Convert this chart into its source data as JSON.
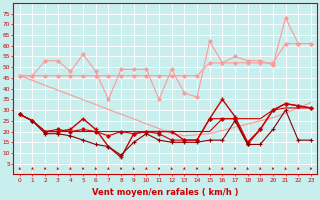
{
  "x": [
    0,
    1,
    2,
    3,
    4,
    5,
    6,
    7,
    8,
    9,
    10,
    11,
    12,
    13,
    14,
    15,
    16,
    17,
    18,
    19,
    20,
    21,
    22,
    23
  ],
  "series": [
    {
      "name": "rafales_top_diamonds",
      "color": "#FF9999",
      "linewidth": 0.8,
      "marker": "D",
      "markersize": 1.8,
      "values": [
        46,
        46,
        53,
        53,
        48,
        56,
        48,
        35,
        49,
        49,
        49,
        35,
        49,
        38,
        36,
        62,
        52,
        55,
        53,
        53,
        51,
        73,
        61,
        61
      ]
    },
    {
      "name": "rafales_flat",
      "color": "#FF9999",
      "linewidth": 0.8,
      "marker": "D",
      "markersize": 1.8,
      "values": [
        46,
        46,
        46,
        46,
        46,
        46,
        46,
        46,
        46,
        46,
        46,
        46,
        46,
        46,
        46,
        52,
        52,
        52,
        52,
        52,
        52,
        61,
        61,
        61
      ]
    },
    {
      "name": "rafales_trend_line",
      "color": "#FF9999",
      "linewidth": 0.8,
      "marker": null,
      "markersize": 0,
      "values": [
        46,
        43.8,
        41.5,
        39.3,
        37.1,
        34.8,
        32.6,
        30.3,
        28.1,
        25.9,
        23.6,
        21.4,
        19.2,
        18,
        18.5,
        19,
        20.5,
        22,
        23.5,
        25,
        26.5,
        28.5,
        31,
        33.5
      ]
    },
    {
      "name": "vent_main_plus",
      "color": "#CC0000",
      "linewidth": 1.0,
      "marker": "+",
      "markersize": 3.5,
      "markeredgewidth": 1.0,
      "values": [
        28,
        25,
        20,
        20,
        21,
        26,
        21,
        13,
        8,
        19,
        20,
        20,
        20,
        16,
        16,
        26,
        35,
        27,
        15,
        21,
        30,
        33,
        32,
        31
      ]
    },
    {
      "name": "vent_diamonds",
      "color": "#CC0000",
      "linewidth": 0.8,
      "marker": "D",
      "markersize": 1.8,
      "markeredgewidth": 0.8,
      "values": [
        28,
        25,
        20,
        21,
        20,
        21,
        20,
        18,
        20,
        19,
        20,
        19,
        16,
        16,
        16,
        26,
        26,
        26,
        14,
        21,
        30,
        33,
        32,
        31
      ]
    },
    {
      "name": "vent_low_plus",
      "color": "#880000",
      "linewidth": 0.8,
      "marker": "+",
      "markersize": 3.0,
      "markeredgewidth": 0.8,
      "values": [
        28,
        25,
        19,
        19,
        18,
        16,
        14,
        13,
        9,
        15,
        19,
        16,
        15,
        15,
        15,
        16,
        16,
        25,
        14,
        14,
        21,
        30,
        16,
        16
      ]
    },
    {
      "name": "vent_flat_line",
      "color": "#CC0000",
      "linewidth": 0.8,
      "marker": null,
      "markersize": 0,
      "values": [
        28,
        25,
        20,
        20,
        20,
        20,
        20,
        20,
        20,
        20,
        20,
        20,
        20,
        20,
        20,
        20,
        26,
        26,
        26,
        26,
        30,
        31,
        31,
        31
      ]
    }
  ],
  "ylim": [
    0,
    80
  ],
  "yticks": [
    5,
    10,
    15,
    20,
    25,
    30,
    35,
    40,
    45,
    50,
    55,
    60,
    65,
    70,
    75
  ],
  "xlabel": "Vent moyen/en rafales ( km/h )",
  "xlabel_color": "#CC0000",
  "xlabel_fontsize": 6.0,
  "xtick_fontsize": 4.2,
  "ytick_fontsize": 4.2,
  "bg_color": "#C8EEEE",
  "grid_color": "#AADDDD",
  "tick_color": "#CC0000",
  "spine_color": "#CC0000"
}
